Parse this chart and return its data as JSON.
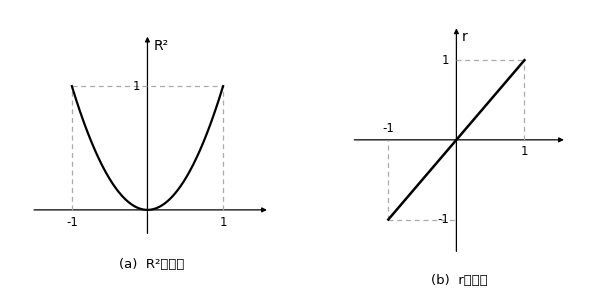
{
  "fig_width": 6.05,
  "fig_height": 3.04,
  "bg_color": "#ffffff",
  "line_color": "#000000",
  "dashed_color": "#aaaaaa",
  "label_a": "(a)  R²の変化",
  "label_b": "(b)  rの変化",
  "axis_label_a": "R²",
  "axis_label_b": "r",
  "tick_fontsize": 8.5,
  "caption_fontsize": 9.5
}
